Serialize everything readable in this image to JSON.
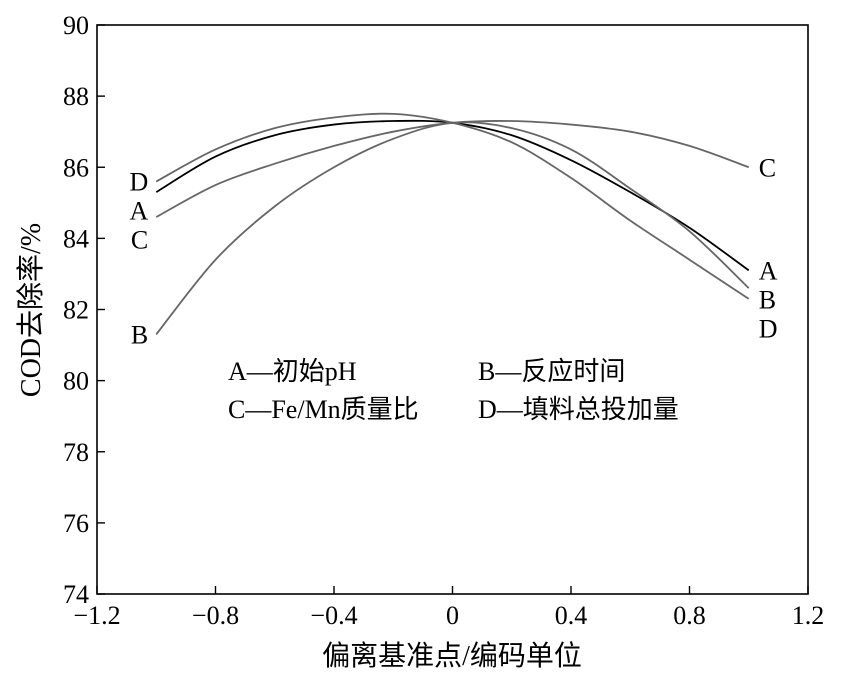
{
  "chart_data": {
    "type": "line",
    "xlabel": "偏离基准点/编码单位",
    "ylabel": "COD去除率/%",
    "xlim": [
      -1.2,
      1.2
    ],
    "ylim": [
      74,
      90
    ],
    "xticks": [
      "−1.2",
      "−0.8",
      "−0.4",
      "0",
      "0.4",
      "0.8",
      "1.2"
    ],
    "yticks": [
      "74",
      "76",
      "78",
      "80",
      "82",
      "84",
      "86",
      "88",
      "90"
    ],
    "grid": false,
    "series": [
      {
        "name": "A",
        "label_left": "A",
        "label_right": "A",
        "color": "#000000",
        "x": [
          -1.0,
          -0.8,
          -0.6,
          -0.4,
          -0.2,
          0.0,
          0.2,
          0.4,
          0.6,
          0.8,
          1.0
        ],
        "y": [
          85.3,
          86.3,
          86.9,
          87.2,
          87.3,
          87.25,
          86.9,
          86.2,
          85.3,
          84.3,
          83.1
        ]
      },
      {
        "name": "B",
        "label_left": "B",
        "label_right": "B",
        "color": "#666666",
        "x": [
          -1.0,
          -0.8,
          -0.6,
          -0.4,
          -0.2,
          0.0,
          0.2,
          0.4,
          0.6,
          0.8,
          1.0
        ],
        "y": [
          81.3,
          83.4,
          84.9,
          86.0,
          86.8,
          87.25,
          87.1,
          86.5,
          85.4,
          84.2,
          82.6
        ]
      },
      {
        "name": "C",
        "label_left": "C",
        "label_right": "C",
        "color": "#666666",
        "x": [
          -1.0,
          -0.8,
          -0.6,
          -0.4,
          -0.2,
          0.0,
          0.2,
          0.4,
          0.6,
          0.8,
          1.0
        ],
        "y": [
          84.6,
          85.5,
          86.1,
          86.6,
          87.0,
          87.25,
          87.3,
          87.2,
          87.0,
          86.6,
          86.0
        ]
      },
      {
        "name": "D",
        "label_left": "D",
        "label_right": "D",
        "color": "#666666",
        "x": [
          -1.0,
          -0.8,
          -0.6,
          -0.4,
          -0.2,
          0.0,
          0.2,
          0.4,
          0.6,
          0.8,
          1.0
        ],
        "y": [
          85.6,
          86.5,
          87.1,
          87.4,
          87.5,
          87.25,
          86.7,
          85.7,
          84.5,
          83.4,
          82.3
        ]
      }
    ],
    "legend": [
      "A—初始pH",
      "B—反应时间",
      "C—Fe/Mn质量比",
      "D—填料总投加量"
    ]
  }
}
